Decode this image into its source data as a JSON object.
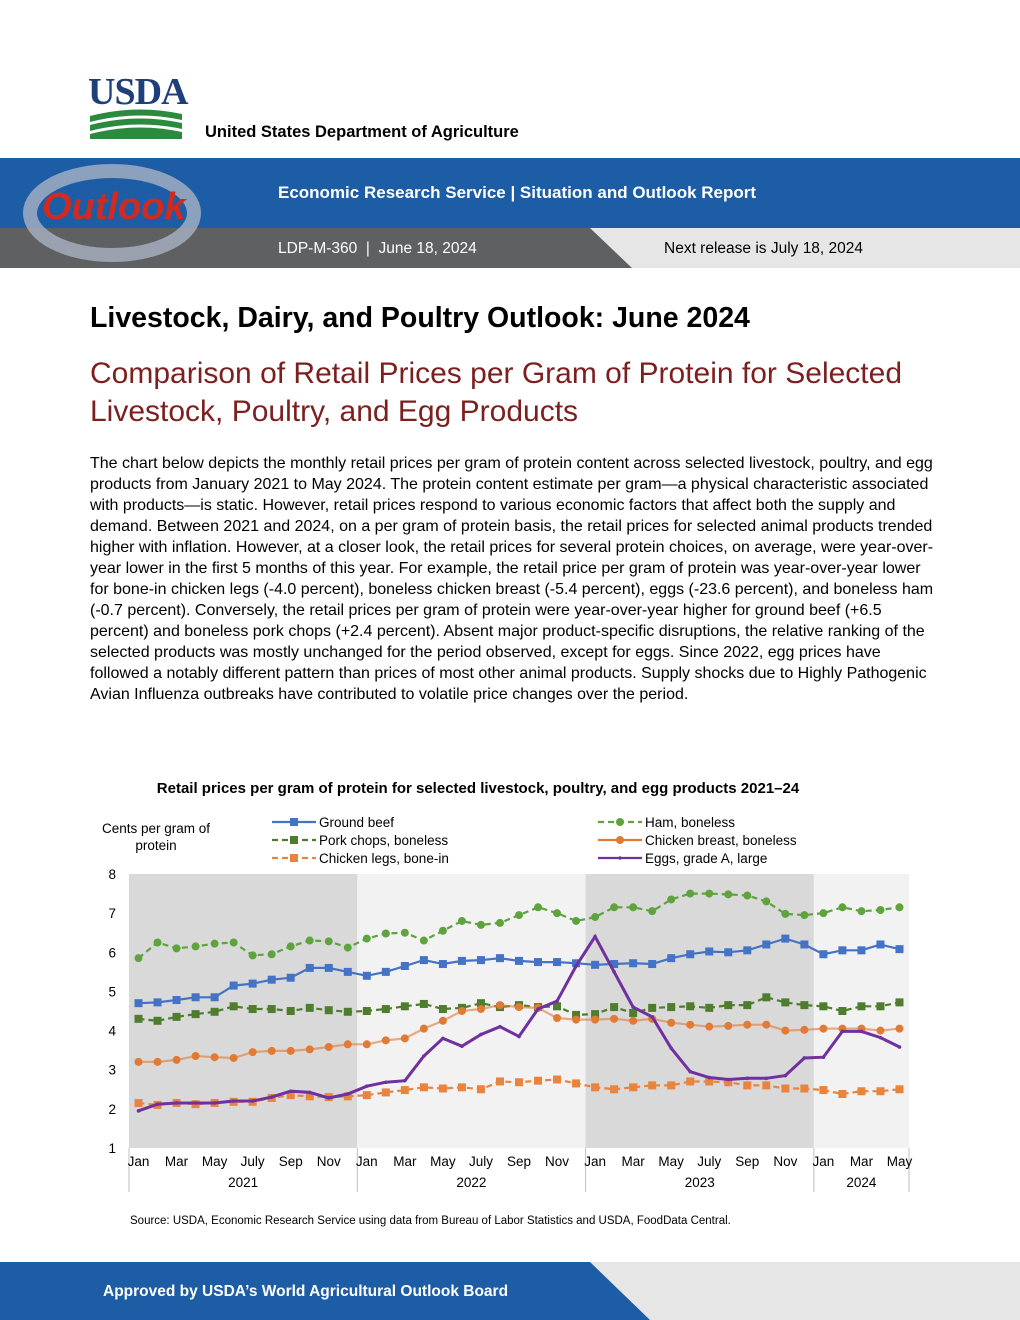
{
  "header": {
    "agency_logo": "USDA",
    "department": "United States Department of Agriculture",
    "outlook_logo": "Outlook",
    "service": "Economic Research Service | Situation and Outlook Report",
    "report_id": "LDP-M-360  |  June 18, 2024",
    "next_release": "Next release is July 18, 2024"
  },
  "title": "Livestock, Dairy, and Poultry Outlook: June 2024",
  "subtitle": "Comparison of Retail Prices per Gram of Protein for Selected Livestock, Poultry, and Egg Products",
  "body": "The chart below depicts the monthly retail prices per gram of protein content across selected livestock, poultry, and egg products from January 2021 to May 2024. The protein content estimate per gram—a physical characteristic associated with products—is static. However, retail prices respond to various economic factors that affect both the supply and demand. Between 2021 and 2024, on a per gram of protein basis, the retail prices for selected animal products trended higher with inflation. However, at a closer look, the retail prices for several protein choices, on average, were year-over-year lower in the first 5 months of this year. For example, the retail price per gram of protein was year-over-year lower for bone-in chicken legs (-4.0 percent), boneless chicken breast (-5.4 percent), eggs (-23.6 percent), and boneless ham (-0.7 percent). Conversely, the retail prices per gram of protein were year-over-year higher for ground beef (+6.5 percent) and boneless pork chops (+2.4 percent). Absent major product-specific disruptions, the relative ranking of the selected products was mostly unchanged for the period observed, except for eggs. Since 2022, egg prices have followed a notably different pattern than prices of most other animal products. Supply shocks due to Highly Pathogenic Avian Influenza outbreaks have contributed to volatile price changes over the period.",
  "chart_data": {
    "type": "line",
    "title": "Retail prices per gram of protein for selected livestock, poultry, and egg products 2021–24",
    "y_label": "Cents per gram of protein",
    "categories": [
      "Jan",
      null,
      "Mar",
      null,
      "May",
      null,
      "July",
      null,
      "Sep",
      null,
      "Nov",
      null,
      "Jan",
      null,
      "Mar",
      null,
      "May",
      null,
      "July",
      null,
      "Sep",
      null,
      "Nov",
      null,
      "Jan",
      null,
      "Mar",
      null,
      "May",
      null,
      "July",
      null,
      "Sep",
      null,
      "Nov",
      null,
      "Jan",
      null,
      "Mar",
      null,
      "May"
    ],
    "x_groups": [
      "2021",
      "2022",
      "2023",
      "2024"
    ],
    "ylim": [
      1,
      8
    ],
    "yticks": [
      1,
      2,
      3,
      4,
      5,
      6,
      7,
      8
    ],
    "series": [
      {
        "name": "Ground beef",
        "color": "#4472c4",
        "dash": false,
        "marker": "square",
        "values": [
          4.7,
          4.72,
          4.78,
          4.85,
          4.85,
          5.15,
          5.2,
          5.3,
          5.35,
          5.6,
          5.6,
          5.5,
          5.4,
          5.5,
          5.65,
          5.8,
          5.7,
          5.78,
          5.8,
          5.85,
          5.78,
          5.75,
          5.75,
          5.72,
          5.68,
          5.7,
          5.72,
          5.7,
          5.85,
          5.95,
          6.02,
          6.0,
          6.05,
          6.2,
          6.35,
          6.2,
          5.95,
          6.05,
          6.05,
          6.2,
          6.08
        ]
      },
      {
        "name": "Ham, boneless",
        "color": "#5fa33e",
        "dash": true,
        "marker": "circle",
        "values": [
          5.85,
          6.25,
          6.1,
          6.15,
          6.22,
          6.25,
          5.92,
          5.95,
          6.15,
          6.3,
          6.28,
          6.12,
          6.35,
          6.48,
          6.5,
          6.3,
          6.55,
          6.8,
          6.7,
          6.75,
          6.95,
          7.15,
          7.0,
          6.8,
          6.9,
          7.15,
          7.15,
          7.05,
          7.35,
          7.5,
          7.5,
          7.48,
          7.45,
          7.3,
          6.98,
          6.95,
          7.0,
          7.15,
          7.05,
          7.08,
          7.15
        ]
      },
      {
        "name": "Pork chops, boneless",
        "color": "#4e7d2e",
        "dash": true,
        "marker": "square",
        "values": [
          4.3,
          4.25,
          4.35,
          4.42,
          4.48,
          4.62,
          4.55,
          4.55,
          4.5,
          4.58,
          4.52,
          4.48,
          4.5,
          4.55,
          4.62,
          4.68,
          4.55,
          4.58,
          4.7,
          4.6,
          4.65,
          4.6,
          4.62,
          4.4,
          4.42,
          4.6,
          4.45,
          4.58,
          4.6,
          4.62,
          4.58,
          4.65,
          4.65,
          4.85,
          4.72,
          4.65,
          4.62,
          4.5,
          4.62,
          4.62,
          4.72
        ]
      },
      {
        "name": "Chicken breast, boneless",
        "color": "#e07a34",
        "dash": false,
        "marker": "circle",
        "values": [
          3.2,
          3.2,
          3.25,
          3.35,
          3.32,
          3.3,
          3.45,
          3.48,
          3.48,
          3.52,
          3.58,
          3.65,
          3.65,
          3.75,
          3.8,
          4.05,
          4.25,
          4.5,
          4.55,
          4.65,
          4.6,
          4.58,
          4.32,
          4.28,
          4.28,
          4.3,
          4.25,
          4.3,
          4.2,
          4.15,
          4.1,
          4.12,
          4.15,
          4.15,
          4.0,
          4.02,
          4.05,
          4.05,
          4.05,
          4.0,
          4.05
        ]
      },
      {
        "name": "Chicken legs, bone-in",
        "color": "#e8843e",
        "dash": true,
        "marker": "square",
        "values": [
          2.15,
          2.1,
          2.15,
          2.12,
          2.15,
          2.18,
          2.18,
          2.28,
          2.35,
          2.32,
          2.3,
          2.32,
          2.35,
          2.42,
          2.48,
          2.55,
          2.52,
          2.55,
          2.5,
          2.7,
          2.68,
          2.72,
          2.75,
          2.65,
          2.55,
          2.5,
          2.55,
          2.6,
          2.6,
          2.7,
          2.7,
          2.68,
          2.6,
          2.6,
          2.52,
          2.52,
          2.48,
          2.38,
          2.45,
          2.45,
          2.5
        ]
      },
      {
        "name": "Eggs, grade A, large",
        "color": "#7030a0",
        "dash": false,
        "marker": "dot",
        "values": [
          1.95,
          2.12,
          2.15,
          2.15,
          2.15,
          2.2,
          2.2,
          2.3,
          2.45,
          2.42,
          2.28,
          2.38,
          2.58,
          2.68,
          2.72,
          3.35,
          3.8,
          3.6,
          3.9,
          4.1,
          3.85,
          4.55,
          4.75,
          5.65,
          6.4,
          5.5,
          4.6,
          4.35,
          3.55,
          2.95,
          2.8,
          2.75,
          2.78,
          2.78,
          2.85,
          3.3,
          3.32,
          3.98,
          3.98,
          3.82,
          3.58
        ]
      }
    ]
  },
  "source": "Source: USDA, Economic Research Service using data from Bureau of Labor Statistics and USDA, FoodData Central.",
  "footer": "Approved by USDA’s World Agricultural Outlook Board"
}
